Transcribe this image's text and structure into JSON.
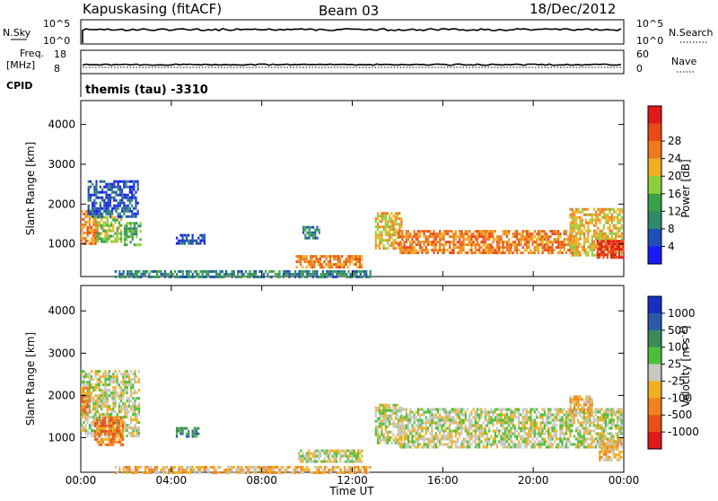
{
  "header": {
    "station": "Kapuskasing (fitACF)",
    "beam": "Beam 03",
    "date": "18/Dec/2012"
  },
  "strip_labels": {
    "nsky": "N.Sky",
    "freq_line1": "Freq.",
    "freq_line2": "[MHz]",
    "cpid": "CPID",
    "nsearch": "N.Search",
    "nave": "Nave",
    "cpid_text": "themis (tau) -3310"
  },
  "strip_ticks": {
    "nsky": [
      "10^5",
      "10^0"
    ],
    "nsearch": [
      "10^5",
      "10^0"
    ],
    "freq": [
      "18",
      "8"
    ],
    "nave": [
      "60",
      "0"
    ]
  },
  "colors": {
    "power": [
      "#1a1aff",
      "#1e4fb4",
      "#2f8a6a",
      "#3aa04a",
      "#8ccf3a",
      "#f0b020",
      "#f07a1e",
      "#e84a1a",
      "#e01a1a"
    ],
    "velocity": [
      "#1a2fbf",
      "#2a5aa8",
      "#3a8a5a",
      "#4cbf3a",
      "#c8c8c0",
      "#f0b020",
      "#f0821e",
      "#e8501a",
      "#e01a1a"
    ],
    "trace": "#000000"
  },
  "chart_data": [
    {
      "type": "heatmap",
      "panel": "power",
      "ylabel": "Slant Range [km]",
      "ylim": [
        180,
        4600
      ],
      "yticks": [
        "1000",
        "2000",
        "3000",
        "4000"
      ],
      "xlim": [
        0,
        24
      ],
      "colorbar_label": "Power [dB]",
      "colorbar_ticks": [
        "4",
        "8",
        "12",
        "16",
        "20",
        "24",
        "28"
      ],
      "regions": [
        {
          "t0": 0.0,
          "t1": 0.7,
          "r0": 1000,
          "r1": 1850,
          "level": 6
        },
        {
          "t0": 0.7,
          "t1": 1.8,
          "r0": 1050,
          "r1": 1700,
          "level": 4
        },
        {
          "t0": 0.3,
          "t1": 2.5,
          "r0": 1700,
          "r1": 2600,
          "level": 1
        },
        {
          "t0": 1.9,
          "t1": 2.6,
          "r0": 950,
          "r1": 1550,
          "level": 3
        },
        {
          "t0": 4.2,
          "t1": 5.5,
          "r0": 1000,
          "r1": 1250,
          "level": 1
        },
        {
          "t0": 9.8,
          "t1": 10.5,
          "r0": 1150,
          "r1": 1450,
          "level": 2
        },
        {
          "t0": 9.5,
          "t1": 12.4,
          "r0": 420,
          "r1": 720,
          "level": 6
        },
        {
          "t0": 13.0,
          "t1": 14.2,
          "r0": 900,
          "r1": 1800,
          "level": 5
        },
        {
          "t0": 14.0,
          "t1": 21.8,
          "r0": 780,
          "r1": 1350,
          "level": 6
        },
        {
          "t0": 21.6,
          "t1": 23.9,
          "r0": 700,
          "r1": 1900,
          "level": 5
        },
        {
          "t0": 22.8,
          "t1": 24.0,
          "r0": 650,
          "r1": 1100,
          "level": 8
        },
        {
          "t0": 1.5,
          "t1": 12.8,
          "r0": 190,
          "r1": 340,
          "level": 2
        }
      ]
    },
    {
      "type": "heatmap",
      "panel": "velocity",
      "ylabel": "Slant Range [km]",
      "ylim": [
        180,
        4600
      ],
      "yticks": [
        "1000",
        "2000",
        "3000",
        "4000"
      ],
      "xlim": [
        0,
        24
      ],
      "xticks": [
        "00:00",
        "04:00",
        "08:00",
        "12:00",
        "16:00",
        "20:00",
        "00:00"
      ],
      "xlabel": "Time UT",
      "colorbar_label": "Velocity [m s^-1]",
      "colorbar_ticks": [
        "1000",
        "500",
        "100",
        "25",
        "-25",
        "-100",
        "-500",
        "-1000"
      ],
      "regions": [
        {
          "t0": 0.0,
          "t1": 2.6,
          "r0": 1050,
          "r1": 2600,
          "level": 4
        },
        {
          "t0": 0.6,
          "t1": 1.9,
          "r0": 850,
          "r1": 1500,
          "level": 6
        },
        {
          "t0": 0.0,
          "t1": 0.4,
          "r0": 1600,
          "r1": 2200,
          "level": 6
        },
        {
          "t0": 4.2,
          "t1": 5.2,
          "r0": 1000,
          "r1": 1250,
          "level": 2
        },
        {
          "t0": 9.6,
          "t1": 12.4,
          "r0": 420,
          "r1": 720,
          "level": 4
        },
        {
          "t0": 13.0,
          "t1": 14.2,
          "r0": 900,
          "r1": 1800,
          "level": 4
        },
        {
          "t0": 14.0,
          "t1": 23.9,
          "r0": 780,
          "r1": 1700,
          "level": 4
        },
        {
          "t0": 21.6,
          "t1": 22.6,
          "r0": 1550,
          "r1": 2000,
          "level": 5
        },
        {
          "t0": 22.9,
          "t1": 23.9,
          "r0": 450,
          "r1": 950,
          "level": 5
        },
        {
          "t0": 1.5,
          "t1": 12.8,
          "r0": 190,
          "r1": 330,
          "level": 5
        }
      ]
    }
  ]
}
